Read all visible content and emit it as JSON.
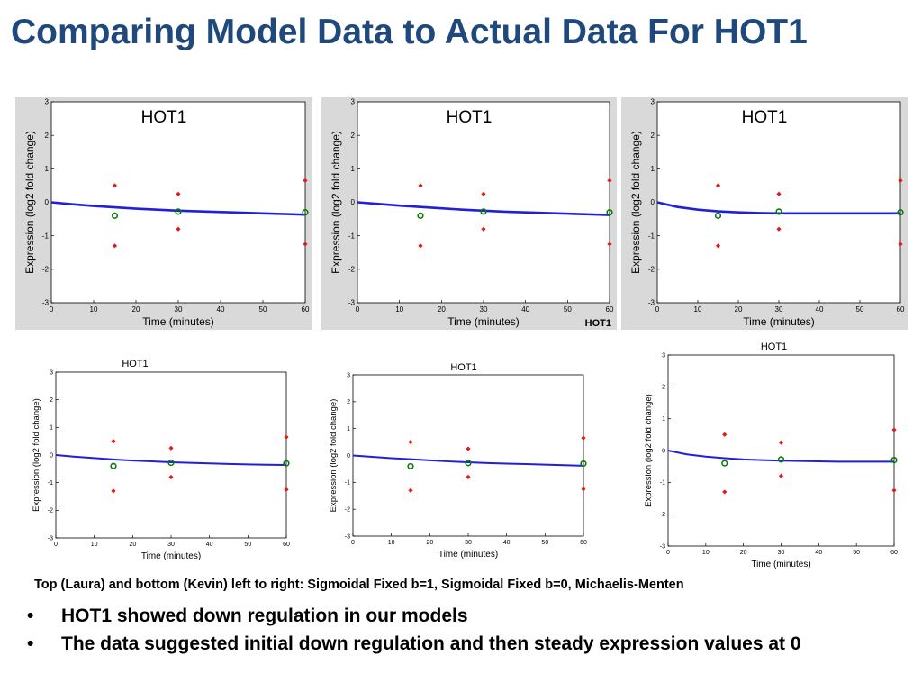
{
  "slide": {
    "title": "Comparing Model Data to Actual Data For HOT1",
    "caption": "Top (Laura) and bottom (Kevin) left to right: Sigmoidal Fixed b=1, Sigmoidal Fixed b=0, Michaelis-Menten",
    "bullets": [
      "HOT1 showed down regulation in our models",
      "The data suggested initial down regulation and then steady expression values at 0"
    ],
    "bullet_glyph": "•",
    "stamp": "HOT1"
  },
  "colors": {
    "title": "#1f497d",
    "model_line": "#1f1fdc",
    "replicate": "#e01b1b",
    "mean": "#0a7a0a"
  },
  "chart_data": [
    {
      "id": "laura-sigmoidal-b1",
      "type": "scatter",
      "title": "HOT1",
      "xlabel": "Time (minutes)",
      "ylabel": "Expression (log2 fold change)",
      "xlim": [
        0,
        60
      ],
      "ylim": [
        -3,
        3
      ],
      "xticks": [
        0,
        10,
        20,
        30,
        40,
        50,
        60
      ],
      "yticks": [
        -3,
        -2,
        -1,
        0,
        1,
        2,
        3
      ],
      "replicates": [
        [
          15,
          0.5
        ],
        [
          15,
          -1.3
        ],
        [
          30,
          0.25
        ],
        [
          30,
          -0.8
        ],
        [
          60,
          0.65
        ],
        [
          60,
          -1.25
        ]
      ],
      "means": [
        [
          15,
          -0.4
        ],
        [
          30,
          -0.28
        ],
        [
          60,
          -0.3
        ]
      ],
      "model": {
        "name": "Sigmoidal Fixed b=1",
        "x": [
          0,
          5,
          10,
          15,
          20,
          25,
          30,
          35,
          40,
          45,
          50,
          55,
          60
        ],
        "y": [
          0,
          -0.06,
          -0.11,
          -0.15,
          -0.19,
          -0.22,
          -0.25,
          -0.27,
          -0.29,
          -0.31,
          -0.33,
          -0.35,
          -0.37
        ]
      }
    },
    {
      "id": "laura-sigmoidal-b0",
      "type": "scatter",
      "title": "HOT1",
      "xlabel": "Time (minutes)",
      "ylabel": "Expression (log2 fold change)",
      "xlim": [
        0,
        60
      ],
      "ylim": [
        -3,
        3
      ],
      "xticks": [
        0,
        10,
        20,
        30,
        40,
        50,
        60
      ],
      "yticks": [
        -3,
        -2,
        -1,
        0,
        1,
        2,
        3
      ],
      "replicates": [
        [
          15,
          0.5
        ],
        [
          15,
          -1.3
        ],
        [
          30,
          0.25
        ],
        [
          30,
          -0.8
        ],
        [
          60,
          0.65
        ],
        [
          60,
          -1.25
        ]
      ],
      "means": [
        [
          15,
          -0.4
        ],
        [
          30,
          -0.28
        ],
        [
          60,
          -0.3
        ]
      ],
      "model": {
        "name": "Sigmoidal Fixed b=0",
        "x": [
          0,
          5,
          10,
          15,
          20,
          25,
          30,
          35,
          40,
          45,
          50,
          55,
          60
        ],
        "y": [
          0,
          -0.05,
          -0.1,
          -0.14,
          -0.18,
          -0.22,
          -0.25,
          -0.28,
          -0.3,
          -0.32,
          -0.34,
          -0.36,
          -0.38
        ]
      }
    },
    {
      "id": "laura-michaelis-menten",
      "type": "scatter",
      "title": "HOT1",
      "xlabel": "Time (minutes)",
      "ylabel": "Expression (log2 fold change)",
      "xlim": [
        0,
        60
      ],
      "ylim": [
        -3,
        3
      ],
      "xticks": [
        0,
        10,
        20,
        30,
        40,
        50,
        60
      ],
      "yticks": [
        -3,
        -2,
        -1,
        0,
        1,
        2,
        3
      ],
      "replicates": [
        [
          15,
          0.5
        ],
        [
          15,
          -1.3
        ],
        [
          30,
          0.25
        ],
        [
          30,
          -0.8
        ],
        [
          60,
          0.65
        ],
        [
          60,
          -1.25
        ]
      ],
      "means": [
        [
          15,
          -0.4
        ],
        [
          30,
          -0.28
        ],
        [
          60,
          -0.3
        ]
      ],
      "model": {
        "name": "Michaelis-Menten",
        "x": [
          0,
          5,
          10,
          15,
          20,
          25,
          30,
          35,
          40,
          45,
          50,
          55,
          60
        ],
        "y": [
          0,
          -0.14,
          -0.22,
          -0.27,
          -0.3,
          -0.32,
          -0.33,
          -0.33,
          -0.33,
          -0.33,
          -0.33,
          -0.33,
          -0.33
        ]
      }
    },
    {
      "id": "kevin-sigmoidal-b1",
      "type": "scatter",
      "title": "HOT1",
      "xlabel": "Time (minutes)",
      "ylabel": "Expression (log2 fold change)",
      "xlim": [
        0,
        60
      ],
      "ylim": [
        -3,
        3
      ],
      "xticks": [
        0,
        10,
        20,
        30,
        40,
        50,
        60
      ],
      "yticks": [
        -3,
        -2,
        -1,
        0,
        1,
        2,
        3
      ],
      "replicates": [
        [
          15,
          0.5
        ],
        [
          15,
          -1.3
        ],
        [
          30,
          0.25
        ],
        [
          30,
          -0.8
        ],
        [
          60,
          0.65
        ],
        [
          60,
          -1.25
        ]
      ],
      "means": [
        [
          15,
          -0.4
        ],
        [
          30,
          -0.28
        ],
        [
          60,
          -0.3
        ]
      ],
      "model": {
        "name": "Sigmoidal Fixed b=1",
        "x": [
          0,
          5,
          10,
          15,
          20,
          25,
          30,
          35,
          40,
          45,
          50,
          55,
          60
        ],
        "y": [
          0,
          -0.06,
          -0.11,
          -0.16,
          -0.2,
          -0.23,
          -0.26,
          -0.28,
          -0.3,
          -0.32,
          -0.34,
          -0.35,
          -0.36
        ]
      }
    },
    {
      "id": "kevin-sigmoidal-b0",
      "type": "scatter",
      "title": "HOT1",
      "xlabel": "Time (minutes)",
      "ylabel": "Expression (log2 fold change)",
      "xlim": [
        0,
        60
      ],
      "ylim": [
        -3,
        3
      ],
      "xticks": [
        0,
        10,
        20,
        30,
        40,
        50,
        60
      ],
      "yticks": [
        -3,
        -2,
        -1,
        0,
        1,
        2,
        3
      ],
      "replicates": [
        [
          15,
          0.5
        ],
        [
          15,
          -1.3
        ],
        [
          30,
          0.25
        ],
        [
          30,
          -0.8
        ],
        [
          60,
          0.65
        ],
        [
          60,
          -1.25
        ]
      ],
      "means": [
        [
          15,
          -0.4
        ],
        [
          30,
          -0.28
        ],
        [
          60,
          -0.3
        ]
      ],
      "model": {
        "name": "Sigmoidal Fixed b=0",
        "x": [
          0,
          5,
          10,
          15,
          20,
          25,
          30,
          35,
          40,
          45,
          50,
          55,
          60
        ],
        "y": [
          0,
          -0.05,
          -0.1,
          -0.14,
          -0.18,
          -0.22,
          -0.25,
          -0.28,
          -0.3,
          -0.32,
          -0.34,
          -0.36,
          -0.38
        ]
      }
    },
    {
      "id": "kevin-michaelis-menten",
      "type": "scatter",
      "title": "HOT1",
      "xlabel": "Time (minutes)",
      "ylabel": "Expression (log2 fold change)",
      "xlim": [
        0,
        60
      ],
      "ylim": [
        -3,
        3
      ],
      "xticks": [
        0,
        10,
        20,
        30,
        40,
        50,
        60
      ],
      "yticks": [
        -3,
        -2,
        -1,
        0,
        1,
        2,
        3
      ],
      "replicates": [
        [
          15,
          0.5
        ],
        [
          15,
          -1.3
        ],
        [
          30,
          0.25
        ],
        [
          30,
          -0.8
        ],
        [
          60,
          0.65
        ],
        [
          60,
          -1.25
        ]
      ],
      "means": [
        [
          15,
          -0.4
        ],
        [
          30,
          -0.28
        ],
        [
          60,
          -0.3
        ]
      ],
      "model": {
        "name": "Michaelis-Menten",
        "x": [
          0,
          5,
          10,
          15,
          20,
          25,
          30,
          35,
          40,
          45,
          50,
          55,
          60
        ],
        "y": [
          0,
          -0.12,
          -0.19,
          -0.24,
          -0.28,
          -0.3,
          -0.32,
          -0.33,
          -0.34,
          -0.35,
          -0.35,
          -0.35,
          -0.35
        ]
      }
    }
  ]
}
